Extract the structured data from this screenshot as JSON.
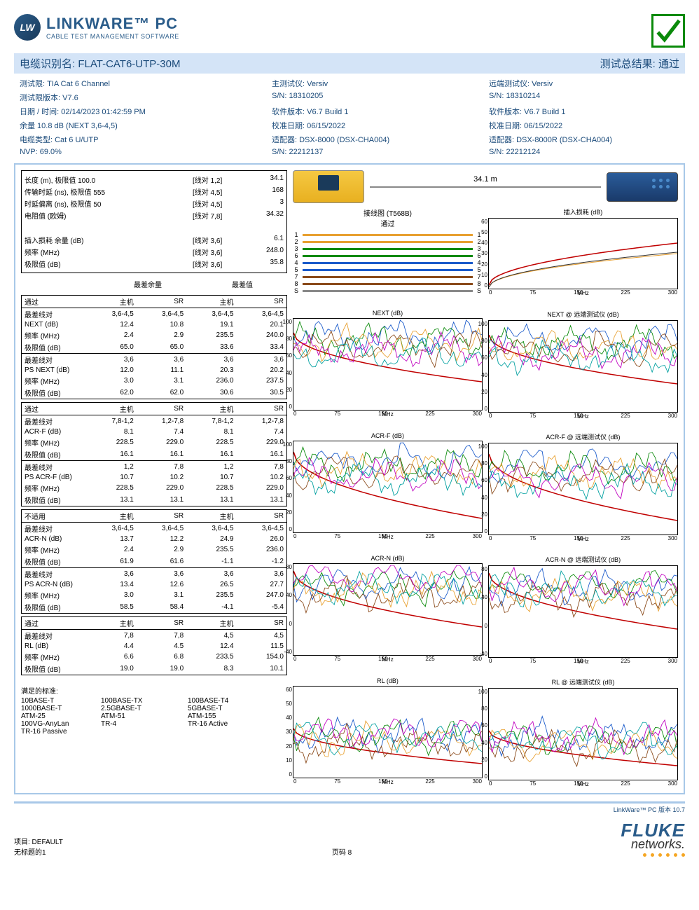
{
  "logo": {
    "badge": "LW",
    "main": "LINKWARE™ PC",
    "sub": "CABLE TEST MANAGEMENT SOFTWARE"
  },
  "title": {
    "left_label": "电缆识别名:",
    "cable_id": "FLAT-CAT6-UTP-30M",
    "result_label": "测试总结果:",
    "result": "通过"
  },
  "info": {
    "col1": [
      "测试限: TIA Cat 6 Channel",
      "测试限版本: V7.6",
      "日期 / 时间: 02/14/2023  01:42:59 PM",
      "余量 10.8 dB (NEXT 3,6-4,5)",
      "电缆类型: Cat 6 U/UTP",
      "NVP: 69.0%"
    ],
    "col2": [
      "主测试仪: Versiv",
      "S/N: 18310205",
      "软件版本: V6.7 Build 1",
      "校准日期:  06/15/2022",
      "适配器: DSX-8000 (DSX-CHA004)",
      "S/N: 22212137"
    ],
    "col3": [
      "远端测试仪: Versiv",
      "S/N: 18310214",
      "软件版本: V6.7 Build 1",
      "校准日期:  06/15/2022",
      "适配器: DSX-8000R (DSX-CHA004)",
      "S/N: 22212124"
    ]
  },
  "summary": {
    "rows1": [
      {
        "lbl": "长度 (m), 极限值 100.0",
        "pair": "[线对 1,2]",
        "val": "34.1"
      },
      {
        "lbl": "传输时延 (ns), 极限值 555",
        "pair": "[线对 4,5]",
        "val": "168"
      },
      {
        "lbl": "时延偏离 (ns), 极限值 50",
        "pair": "[线对 4,5]",
        "val": "3"
      },
      {
        "lbl": "电阻值 (欧姆)",
        "pair": "[线对 7,8]",
        "val": "34.32"
      }
    ],
    "rows2": [
      {
        "lbl": "插入损耗 余量 (dB)",
        "pair": "[线对 3,6]",
        "val": "6.1"
      },
      {
        "lbl": "频率 (MHz)",
        "pair": "[线对 3,6]",
        "val": "248.0"
      },
      {
        "lbl": "极限值 (dB)",
        "pair": "[线对 3,6]",
        "val": "35.8"
      }
    ]
  },
  "margin_headers": {
    "h1": "最差余量",
    "h2": "最差值"
  },
  "col_headers": {
    "c1": "主机",
    "c2": "SR",
    "c3": "主机",
    "c4": "SR"
  },
  "tables": [
    {
      "status": "通过",
      "groups": [
        {
          "rows": [
            {
              "l": "最差线对",
              "v": [
                "3,6-4,5",
                "3,6-4,5",
                "3,6-4,5",
                "3,6-4,5"
              ]
            },
            {
              "l": "NEXT (dB)",
              "v": [
                "12.4",
                "10.8",
                "19.1",
                "20.1"
              ]
            },
            {
              "l": "频率 (MHz)",
              "v": [
                "2.4",
                "2.9",
                "235.5",
                "240.0"
              ]
            },
            {
              "l": "极限值 (dB)",
              "v": [
                "65.0",
                "65.0",
                "33.6",
                "33.4"
              ]
            }
          ]
        },
        {
          "rows": [
            {
              "l": "最差线对",
              "v": [
                "3,6",
                "3,6",
                "3,6",
                "3,6"
              ]
            },
            {
              "l": "PS NEXT (dB)",
              "v": [
                "12.0",
                "11.1",
                "20.3",
                "20.2"
              ]
            },
            {
              "l": "频率 (MHz)",
              "v": [
                "3.0",
                "3.1",
                "236.0",
                "237.5"
              ]
            },
            {
              "l": "极限值 (dB)",
              "v": [
                "62.0",
                "62.0",
                "30.6",
                "30.5"
              ]
            }
          ]
        }
      ]
    },
    {
      "status": "通过",
      "groups": [
        {
          "rows": [
            {
              "l": "最差线对",
              "v": [
                "7,8-1,2",
                "1,2-7,8",
                "7,8-1,2",
                "1,2-7,8"
              ]
            },
            {
              "l": "ACR-F (dB)",
              "v": [
                "8.1",
                "7.4",
                "8.1",
                "7.4"
              ]
            },
            {
              "l": "频率 (MHz)",
              "v": [
                "228.5",
                "229.0",
                "228.5",
                "229.0"
              ]
            },
            {
              "l": "极限值 (dB)",
              "v": [
                "16.1",
                "16.1",
                "16.1",
                "16.1"
              ]
            }
          ]
        },
        {
          "rows": [
            {
              "l": "最差线对",
              "v": [
                "1,2",
                "7,8",
                "1,2",
                "7,8"
              ]
            },
            {
              "l": "PS ACR-F (dB)",
              "v": [
                "10.7",
                "10.2",
                "10.7",
                "10.2"
              ]
            },
            {
              "l": "频率 (MHz)",
              "v": [
                "228.5",
                "229.0",
                "228.5",
                "229.0"
              ]
            },
            {
              "l": "极限值 (dB)",
              "v": [
                "13.1",
                "13.1",
                "13.1",
                "13.1"
              ]
            }
          ]
        }
      ]
    },
    {
      "status": "不适用",
      "groups": [
        {
          "rows": [
            {
              "l": "最差线对",
              "v": [
                "3,6-4,5",
                "3,6-4,5",
                "3,6-4,5",
                "3,6-4,5"
              ]
            },
            {
              "l": "ACR-N (dB)",
              "v": [
                "13.7",
                "12.2",
                "24.9",
                "26.0"
              ]
            },
            {
              "l": "频率 (MHz)",
              "v": [
                "2.4",
                "2.9",
                "235.5",
                "236.0"
              ]
            },
            {
              "l": "极限值 (dB)",
              "v": [
                "61.9",
                "61.6",
                "-1.1",
                "-1.2"
              ]
            }
          ]
        },
        {
          "rows": [
            {
              "l": "最差线对",
              "v": [
                "3,6",
                "3,6",
                "3,6",
                "3,6"
              ]
            },
            {
              "l": "PS ACR-N (dB)",
              "v": [
                "13.4",
                "12.6",
                "26.5",
                "27.7"
              ]
            },
            {
              "l": "频率 (MHz)",
              "v": [
                "3.0",
                "3.1",
                "235.5",
                "247.0"
              ]
            },
            {
              "l": "极限值 (dB)",
              "v": [
                "58.5",
                "58.4",
                "-4.1",
                "-5.4"
              ]
            }
          ]
        }
      ]
    },
    {
      "status": "通过",
      "groups": [
        {
          "rows": [
            {
              "l": "最差线对",
              "v": [
                "7,8",
                "7,8",
                "4,5",
                "4,5"
              ]
            },
            {
              "l": "RL (dB)",
              "v": [
                "4.4",
                "4.5",
                "12.4",
                "11.5"
              ]
            },
            {
              "l": "频率 (MHz)",
              "v": [
                "6.6",
                "6.8",
                "233.5",
                "154.0"
              ]
            },
            {
              "l": "极限值 (dB)",
              "v": [
                "19.0",
                "19.0",
                "8.3",
                "10.1"
              ]
            }
          ]
        }
      ]
    }
  ],
  "standards": {
    "title": "满足的标准:",
    "items": [
      "10BASE-T",
      "100BASE-TX",
      "100BASE-T4",
      "1000BASE-T",
      "2.5GBASE-T",
      "5GBASE-T",
      "ATM-25",
      "ATM-51",
      "ATM-155",
      "100VG-AnyLan",
      "TR-4",
      "TR-16 Active",
      "TR-16 Passive"
    ]
  },
  "cable_length": "34.1 m",
  "wiremap": {
    "title": "接线图 (T568B)",
    "status": "通过",
    "wires": [
      {
        "n": "1",
        "color": "#e8a030"
      },
      {
        "n": "2",
        "color": "#e8a030"
      },
      {
        "n": "3",
        "color": "#0a8a0a"
      },
      {
        "n": "6",
        "color": "#0a8a0a"
      },
      {
        "n": "4",
        "color": "#1a5aca"
      },
      {
        "n": "5",
        "color": "#1a5aca"
      },
      {
        "n": "7",
        "color": "#8a4a1a"
      },
      {
        "n": "8",
        "color": "#8a4a1a"
      },
      {
        "n": "S",
        "color": "#888888"
      }
    ]
  },
  "insertion_loss": {
    "title": "插入损耗 (dB)",
    "ylim": [
      0,
      60
    ],
    "yticks": [
      "60",
      "50",
      "40",
      "30",
      "20",
      "10",
      "0"
    ],
    "xticks": [
      "0",
      "75",
      "150",
      "225",
      "300"
    ],
    "xlabel": "MHz",
    "colors": {
      "limit": "#c00000",
      "trace1": "#e8a030",
      "trace2": "#333333"
    }
  },
  "charts": [
    {
      "title": "NEXT (dB)",
      "ylim": [
        0,
        100
      ],
      "yticks": [
        "100",
        "80",
        "60",
        "40",
        "20",
        "0"
      ],
      "xticks": [
        "0",
        "75",
        "150",
        "225",
        "300"
      ],
      "xlabel": "MHz"
    },
    {
      "title": "NEXT @ 远端测试仪 (dB)",
      "ylim": [
        0,
        100
      ],
      "yticks": [
        "100",
        "80",
        "60",
        "40",
        "20",
        "0"
      ],
      "xticks": [
        "0",
        "75",
        "150",
        "225",
        "300"
      ],
      "xlabel": "MHz"
    },
    {
      "title": "ACR-F (dB)",
      "ylim": [
        0,
        100
      ],
      "yticks": [
        "100",
        "80",
        "60",
        "40",
        "20",
        "0"
      ],
      "xticks": [
        "0",
        "75",
        "150",
        "225",
        "300"
      ],
      "xlabel": "MHz"
    },
    {
      "title": "ACR-F @ 远端测试仪 (dB)",
      "ylim": [
        0,
        100
      ],
      "yticks": [
        "100",
        "80",
        "60",
        "40",
        "20",
        "0"
      ],
      "xticks": [
        "0",
        "75",
        "150",
        "225",
        "300"
      ],
      "xlabel": "MHz"
    },
    {
      "title": "ACR-N (dB)",
      "ylim": [
        -40,
        80
      ],
      "yticks": [
        "80",
        "40",
        "0",
        "-40"
      ],
      "xticks": [
        "0",
        "75",
        "150",
        "225",
        "300"
      ],
      "xlabel": "MHz"
    },
    {
      "title": "ACR-N @ 远端测试仪 (dB)",
      "ylim": [
        -40,
        80
      ],
      "yticks": [
        "80",
        "40",
        "0",
        "-40"
      ],
      "xticks": [
        "0",
        "75",
        "150",
        "225",
        "300"
      ],
      "xlabel": "MHz"
    },
    {
      "title": "RL (dB)",
      "ylim": [
        0,
        60
      ],
      "yticks": [
        "60",
        "50",
        "40",
        "30",
        "20",
        "10",
        "0"
      ],
      "xticks": [
        "0",
        "75",
        "150",
        "225",
        "300"
      ],
      "xlabel": "MHz"
    },
    {
      "title": "RL @ 远端测试仪 (dB)",
      "ylim": [
        0,
        100
      ],
      "yticks": [
        "100",
        "80",
        "60",
        "40",
        "20",
        "0"
      ],
      "xticks": [
        "0",
        "75",
        "150",
        "225",
        "300"
      ],
      "xlabel": "MHz"
    }
  ],
  "chart_colors": [
    "#1a5aca",
    "#0a8a0a",
    "#e8a030",
    "#8a4a1a",
    "#c000c0",
    "#00a0a0",
    "#c00000",
    "#888888"
  ],
  "footer": {
    "version": "LinkWare™ PC 版本 10.7",
    "project": "项目: DEFAULT",
    "untitled": "无标题的1",
    "page": "页码 8",
    "fluke": "FLUKE",
    "networks": "networks."
  }
}
